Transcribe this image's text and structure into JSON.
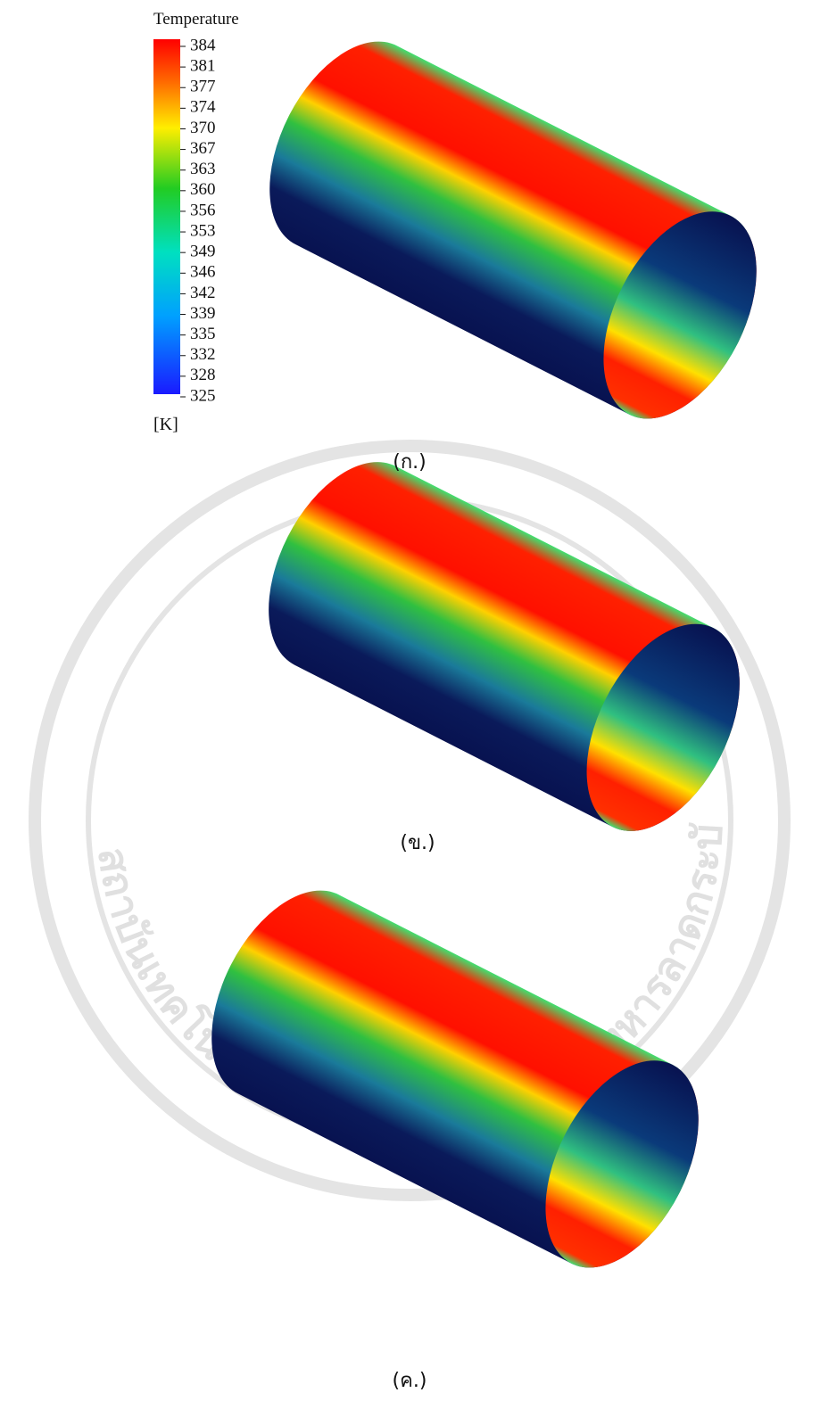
{
  "legend": {
    "title": "Temperature",
    "ticks": [
      384,
      381,
      377,
      374,
      370,
      367,
      363,
      360,
      356,
      353,
      349,
      346,
      342,
      339,
      335,
      332,
      328,
      325
    ],
    "unit": "[K]"
  },
  "panels": [
    {
      "caption": "(ก.)"
    },
    {
      "caption": "(ข.)"
    },
    {
      "caption": "(ค.)"
    }
  ],
  "watermark": "สถาบันเทคโนโลยีพระจอมเกล้าเจ้าคุณทหารลาดกระบัง"
}
